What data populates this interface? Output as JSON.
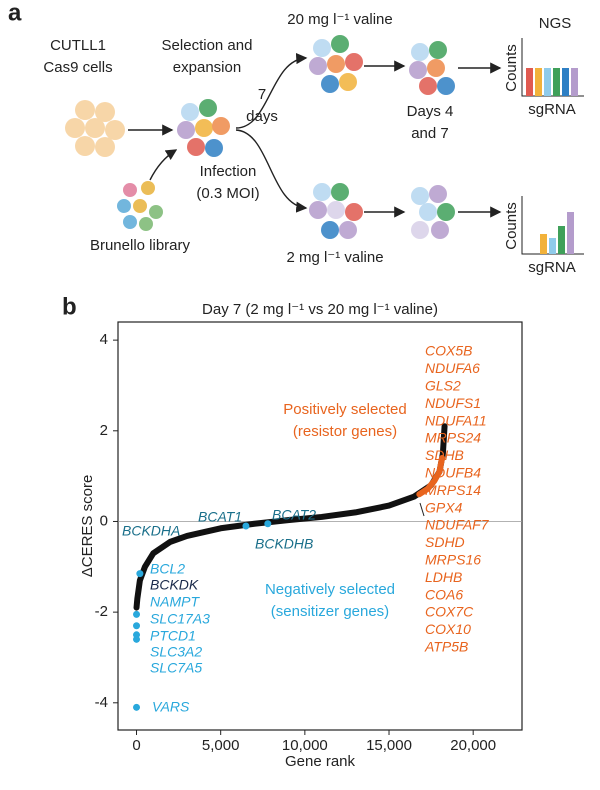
{
  "panel_a": {
    "label": "a",
    "start_cells": [
      "CUTLL1",
      "Cas9 cells"
    ],
    "selection": [
      "Selection and",
      "expansion"
    ],
    "days": [
      "7",
      "days"
    ],
    "infection": [
      "Infection",
      "(0.3 MOI)"
    ],
    "library": "Brunello library",
    "high_valine": "20 mg l⁻¹ valine",
    "low_valine": "2 mg l⁻¹ valine",
    "timepoints": [
      "Days 4",
      "and 7"
    ],
    "ngs": "NGS",
    "counts_top": "Counts",
    "sgrna_top": "sgRNA",
    "counts_bottom": "Counts",
    "sgrna_bottom": "sgRNA"
  },
  "chart_data": {
    "type": "line",
    "label": "b",
    "title": "Day 7 (2 mg l⁻¹ vs 20 mg l⁻¹ valine)",
    "x_label": "Gene rank",
    "y_label": "ΔCERES score",
    "xlim": [
      -1100,
      22900
    ],
    "ylim": [
      -4.6,
      4.4
    ],
    "xticks": [
      0,
      {
        "value": 5000,
        "label": "5,000"
      },
      {
        "value": 10000,
        "label": "10,000"
      },
      {
        "value": 15000,
        "label": "15,000"
      },
      {
        "value": 20000,
        "label": "20,000"
      }
    ],
    "yticks": [
      -4,
      -2,
      0,
      2,
      4
    ],
    "reference_line": 0,
    "series": [
      {
        "style": "line",
        "color": "#111111",
        "x": [
          0,
          50,
          200,
          500,
          1000,
          2000,
          3000,
          5000,
          7000,
          9000,
          11000,
          13000,
          15000,
          16500,
          17500,
          18000,
          18200,
          18300
        ],
        "values": [
          -1.9,
          -1.7,
          -1.3,
          -1.0,
          -0.7,
          -0.45,
          -0.32,
          -0.15,
          -0.05,
          0.03,
          0.1,
          0.2,
          0.35,
          0.55,
          0.8,
          1.1,
          1.5,
          2.1
        ]
      },
      {
        "style": "line",
        "color": "#e8641e",
        "x": [
          16800,
          17300,
          17700,
          18000,
          18150
        ],
        "values": [
          0.6,
          0.72,
          0.9,
          1.1,
          1.4
        ]
      },
      {
        "style": "points",
        "color": "#29a8dc",
        "x": [
          0,
          0,
          0,
          0,
          0,
          200,
          6500,
          7800
        ],
        "values": [
          -4.1,
          -2.6,
          -2.5,
          -2.3,
          -2.05,
          -1.15,
          -0.1,
          -0.05
        ]
      }
    ],
    "annotations": [
      {
        "text": [
          "Positively selected",
          "(resistor genes)"
        ],
        "color": "#e8641e"
      },
      {
        "text": [
          "Negatively selected",
          "(sensitizer genes)"
        ],
        "color": "#29a8dc"
      }
    ],
    "positive_genes": [
      "COX5B",
      "NDUFA6",
      "GLS2",
      "NDUFS1",
      "NDUFA11",
      "MRPS24",
      "SDHB",
      "NDUFB4",
      "MRPS14",
      "GPX4",
      "NDUFAF7",
      "SDHD",
      "MRPS16",
      "LDHB",
      "COA6",
      "COX7C",
      "COX10",
      "ATP5B"
    ],
    "positive_color": "#e8641e",
    "negative_genes": [
      "BCKDHA",
      "BCAT1",
      "BCAT2",
      "BCKDHB",
      "BCL2",
      "BCKDK",
      "NAMPT",
      "SLC17A3",
      "PTCD1",
      "SLC3A2",
      "SLC7A5",
      "VARS"
    ],
    "negative_colors": [
      "#1a6f8a",
      "#1a6f8a",
      "#1a6f8a",
      "#1a6f8a",
      "#29a8dc",
      "#1b2a4a",
      "#29a8dc",
      "#29a8dc",
      "#29a8dc",
      "#29a8dc",
      "#29a8dc",
      "#29a8dc"
    ]
  }
}
